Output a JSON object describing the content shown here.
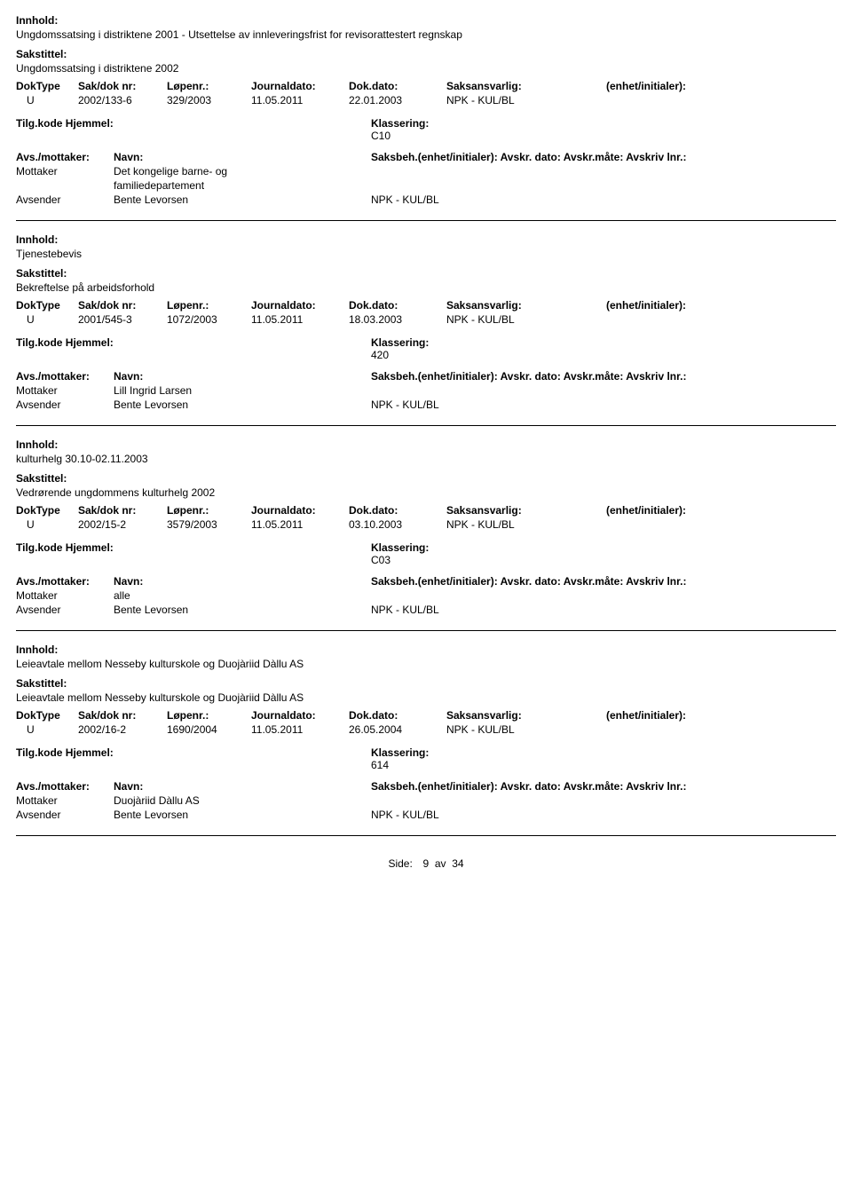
{
  "labels": {
    "innhold": "Innhold:",
    "sakstittel": "Sakstittel:",
    "doktype": "DokType",
    "sakdoknr": "Sak/dok nr:",
    "lopenr": "Løpenr.:",
    "journaldato": "Journaldato:",
    "dokdato": "Dok.dato:",
    "saksansvarlig": "Saksansvarlig:",
    "enhet": "(enhet/initialer):",
    "tilgkode": "Tilg.kode Hjemmel:",
    "klassering": "Klassering:",
    "avsmottaker": "Avs./mottaker:",
    "navn": "Navn:",
    "saksbeh": "Saksbeh.(enhet/initialer): Avskr. dato:  Avskr.måte: Avskriv lnr.:",
    "mottaker": "Mottaker",
    "avsender": "Avsender",
    "side": "Side:",
    "av": "av"
  },
  "page": {
    "num": "9",
    "total": "34"
  },
  "records": [
    {
      "innhold": "Ungdomssatsing i distriktene 2001 - Utsettelse av innleveringsfrist for revisorattestert regnskap",
      "sakstittel": "Ungdomssatsing i distriktene 2002",
      "doktype": "U",
      "sakdok": "2002/133-6",
      "lopenr": "329/2003",
      "journaldato": "11.05.2011",
      "dokdato": "22.01.2003",
      "saksansvarlig": "NPK - KUL/BL",
      "klass": "C10",
      "mottaker_lines": [
        "Det kongelige barne- og",
        "familiedepartement"
      ],
      "avsender": "Bente Levorsen",
      "avsender_unit": "NPK - KUL/BL"
    },
    {
      "innhold": "Tjenestebevis",
      "sakstittel": "Bekreftelse på arbeidsforhold",
      "doktype": "U",
      "sakdok": "2001/545-3",
      "lopenr": "1072/2003",
      "journaldato": "11.05.2011",
      "dokdato": "18.03.2003",
      "saksansvarlig": "NPK - KUL/BL",
      "klass": "420",
      "mottaker_lines": [
        "Lill Ingrid Larsen"
      ],
      "avsender": "Bente Levorsen",
      "avsender_unit": "NPK - KUL/BL"
    },
    {
      "innhold": "kulturhelg 30.10-02.11.2003",
      "sakstittel": "Vedrørende ungdommens kulturhelg 2002",
      "doktype": "U",
      "sakdok": "2002/15-2",
      "lopenr": "3579/2003",
      "journaldato": "11.05.2011",
      "dokdato": "03.10.2003",
      "saksansvarlig": "NPK - KUL/BL",
      "klass": "C03",
      "mottaker_lines": [
        "alle"
      ],
      "avsender": "Bente Levorsen",
      "avsender_unit": "NPK - KUL/BL"
    },
    {
      "innhold": "Leieavtale mellom Nesseby kulturskole og Duojàriid Dàllu AS",
      "sakstittel": "Leieavtale mellom Nesseby kulturskole og Duojàriid Dàllu AS",
      "doktype": "U",
      "sakdok": "2002/16-2",
      "lopenr": "1690/2004",
      "journaldato": "11.05.2011",
      "dokdato": "26.05.2004",
      "saksansvarlig": "NPK - KUL/BL",
      "klass": "614",
      "mottaker_lines": [
        "Duojàriid Dàllu AS"
      ],
      "avsender": "Bente Levorsen",
      "avsender_unit": "NPK - KUL/BL"
    }
  ]
}
